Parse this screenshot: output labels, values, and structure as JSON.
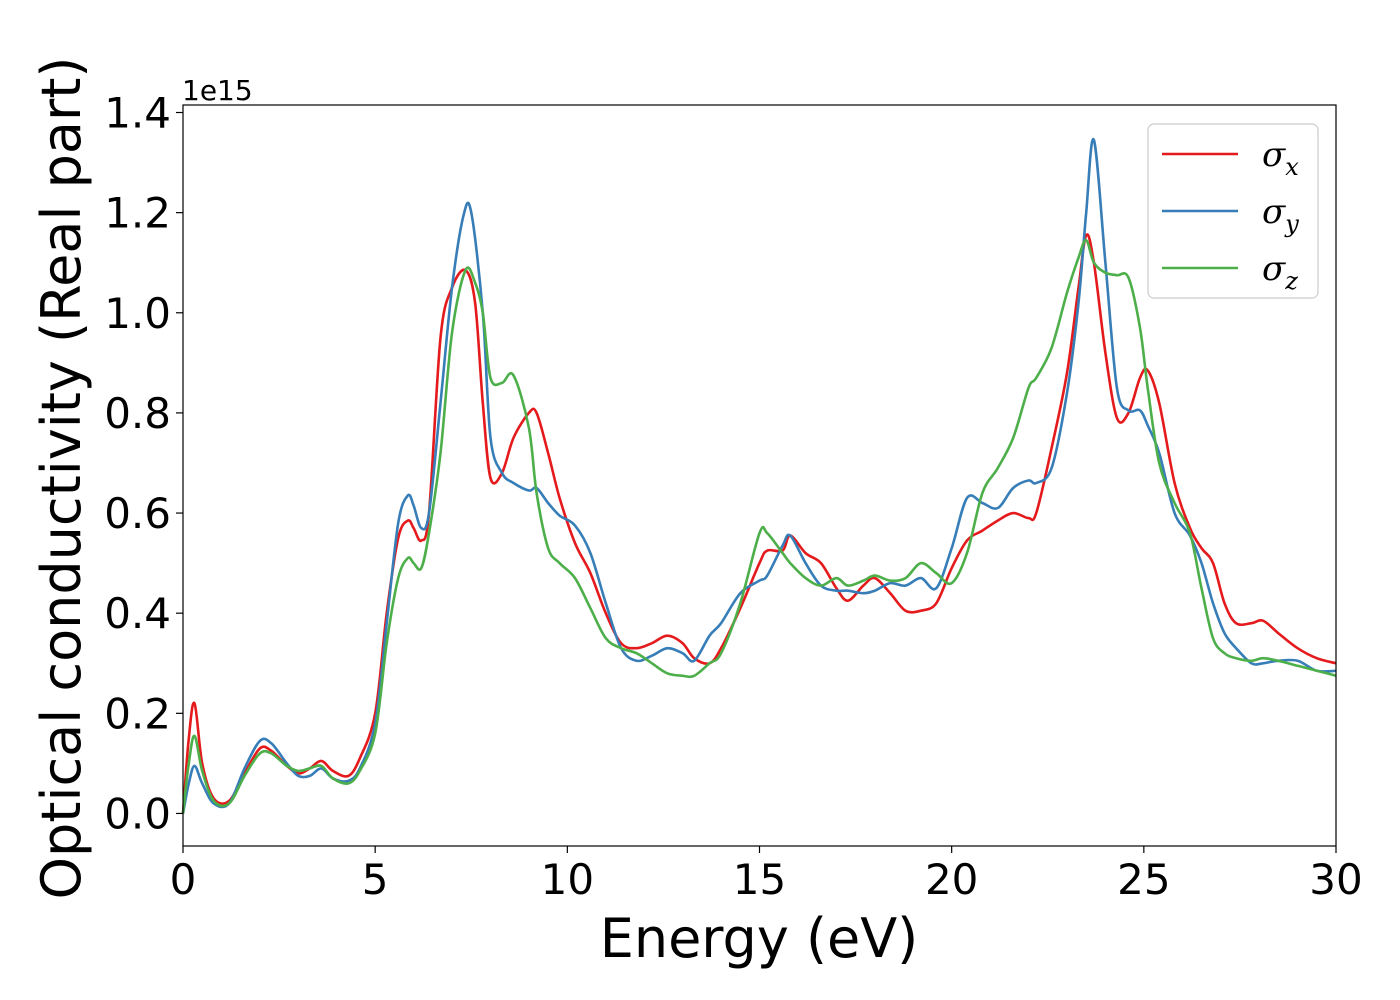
{
  "chart_data": {
    "type": "line",
    "title": "",
    "xlabel": "Energy (eV)",
    "ylabel": "Optical conductivity (Real part)",
    "y_offset_label": "1e15",
    "xlim": [
      0,
      30
    ],
    "ylim": [
      -0.065,
      1.415
    ],
    "x_ticks": [
      0,
      5,
      10,
      15,
      20,
      25,
      30
    ],
    "x_tick_labels": [
      "0",
      "5",
      "10",
      "15",
      "20",
      "25",
      "30"
    ],
    "y_ticks": [
      0.0,
      0.2,
      0.4,
      0.6,
      0.8,
      1.0,
      1.2,
      1.4
    ],
    "y_tick_labels": [
      "0.0",
      "0.2",
      "0.4",
      "0.6",
      "0.8",
      "1.0",
      "1.2",
      "1.4"
    ],
    "grid": false,
    "legend_position": "top-right",
    "series": [
      {
        "name": "σx",
        "legend_symbol": "σ",
        "legend_subscript": "x",
        "color": "#e41a1c",
        "points": [
          [
            0,
            0.0
          ],
          [
            0.15,
            0.15
          ],
          [
            0.3,
            0.22
          ],
          [
            0.5,
            0.1
          ],
          [
            0.8,
            0.03
          ],
          [
            1.2,
            0.025
          ],
          [
            1.6,
            0.08
          ],
          [
            2.0,
            0.13
          ],
          [
            2.3,
            0.125
          ],
          [
            2.7,
            0.095
          ],
          [
            3.0,
            0.08
          ],
          [
            3.3,
            0.09
          ],
          [
            3.6,
            0.105
          ],
          [
            3.9,
            0.085
          ],
          [
            4.3,
            0.075
          ],
          [
            4.6,
            0.11
          ],
          [
            5.0,
            0.2
          ],
          [
            5.3,
            0.4
          ],
          [
            5.6,
            0.55
          ],
          [
            5.85,
            0.585
          ],
          [
            6.0,
            0.57
          ],
          [
            6.2,
            0.545
          ],
          [
            6.4,
            0.6
          ],
          [
            6.7,
            0.95
          ],
          [
            7.0,
            1.05
          ],
          [
            7.35,
            1.085
          ],
          [
            7.6,
            1.02
          ],
          [
            7.8,
            0.82
          ],
          [
            8.0,
            0.67
          ],
          [
            8.3,
            0.68
          ],
          [
            8.6,
            0.75
          ],
          [
            9.0,
            0.8
          ],
          [
            9.2,
            0.8
          ],
          [
            9.5,
            0.72
          ],
          [
            9.8,
            0.63
          ],
          [
            10.2,
            0.54
          ],
          [
            10.6,
            0.48
          ],
          [
            11.0,
            0.4
          ],
          [
            11.4,
            0.34
          ],
          [
            11.8,
            0.33
          ],
          [
            12.2,
            0.34
          ],
          [
            12.6,
            0.355
          ],
          [
            13.0,
            0.34
          ],
          [
            13.3,
            0.31
          ],
          [
            13.7,
            0.3
          ],
          [
            14.0,
            0.33
          ],
          [
            14.5,
            0.41
          ],
          [
            15.0,
            0.5
          ],
          [
            15.2,
            0.525
          ],
          [
            15.6,
            0.525
          ],
          [
            15.8,
            0.555
          ],
          [
            16.2,
            0.52
          ],
          [
            16.6,
            0.5
          ],
          [
            17.0,
            0.45
          ],
          [
            17.3,
            0.425
          ],
          [
            17.7,
            0.455
          ],
          [
            18.0,
            0.47
          ],
          [
            18.4,
            0.44
          ],
          [
            18.8,
            0.405
          ],
          [
            19.2,
            0.405
          ],
          [
            19.6,
            0.42
          ],
          [
            20.0,
            0.49
          ],
          [
            20.4,
            0.545
          ],
          [
            20.8,
            0.565
          ],
          [
            21.2,
            0.585
          ],
          [
            21.6,
            0.6
          ],
          [
            22.0,
            0.59
          ],
          [
            22.2,
            0.6
          ],
          [
            22.6,
            0.73
          ],
          [
            23.0,
            0.88
          ],
          [
            23.3,
            1.05
          ],
          [
            23.5,
            1.155
          ],
          [
            23.7,
            1.1
          ],
          [
            24.0,
            0.92
          ],
          [
            24.3,
            0.79
          ],
          [
            24.6,
            0.8
          ],
          [
            24.9,
            0.87
          ],
          [
            25.1,
            0.885
          ],
          [
            25.4,
            0.82
          ],
          [
            25.8,
            0.66
          ],
          [
            26.2,
            0.57
          ],
          [
            26.5,
            0.53
          ],
          [
            26.8,
            0.5
          ],
          [
            27.1,
            0.42
          ],
          [
            27.4,
            0.38
          ],
          [
            27.8,
            0.38
          ],
          [
            28.1,
            0.385
          ],
          [
            28.5,
            0.36
          ],
          [
            29.0,
            0.33
          ],
          [
            29.5,
            0.31
          ],
          [
            30.0,
            0.3
          ]
        ]
      },
      {
        "name": "σy",
        "legend_symbol": "σ",
        "legend_subscript": "y",
        "color": "#377eb8",
        "points": [
          [
            0,
            0.0
          ],
          [
            0.15,
            0.06
          ],
          [
            0.3,
            0.095
          ],
          [
            0.5,
            0.06
          ],
          [
            0.8,
            0.02
          ],
          [
            1.2,
            0.02
          ],
          [
            1.6,
            0.09
          ],
          [
            2.0,
            0.145
          ],
          [
            2.3,
            0.14
          ],
          [
            2.7,
            0.1
          ],
          [
            3.0,
            0.075
          ],
          [
            3.3,
            0.075
          ],
          [
            3.6,
            0.09
          ],
          [
            3.9,
            0.07
          ],
          [
            4.3,
            0.065
          ],
          [
            4.6,
            0.09
          ],
          [
            5.0,
            0.18
          ],
          [
            5.3,
            0.38
          ],
          [
            5.6,
            0.58
          ],
          [
            5.85,
            0.635
          ],
          [
            6.0,
            0.615
          ],
          [
            6.2,
            0.57
          ],
          [
            6.4,
            0.6
          ],
          [
            6.7,
            0.82
          ],
          [
            7.0,
            1.05
          ],
          [
            7.3,
            1.195
          ],
          [
            7.5,
            1.2
          ],
          [
            7.8,
            1.0
          ],
          [
            8.0,
            0.75
          ],
          [
            8.3,
            0.68
          ],
          [
            8.6,
            0.66
          ],
          [
            9.0,
            0.645
          ],
          [
            9.2,
            0.65
          ],
          [
            9.5,
            0.62
          ],
          [
            9.8,
            0.595
          ],
          [
            10.2,
            0.575
          ],
          [
            10.6,
            0.52
          ],
          [
            11.0,
            0.42
          ],
          [
            11.4,
            0.33
          ],
          [
            11.8,
            0.305
          ],
          [
            12.2,
            0.315
          ],
          [
            12.6,
            0.33
          ],
          [
            13.0,
            0.32
          ],
          [
            13.3,
            0.305
          ],
          [
            13.7,
            0.355
          ],
          [
            14.0,
            0.38
          ],
          [
            14.5,
            0.44
          ],
          [
            15.0,
            0.465
          ],
          [
            15.2,
            0.475
          ],
          [
            15.6,
            0.535
          ],
          [
            15.8,
            0.555
          ],
          [
            16.2,
            0.5
          ],
          [
            16.6,
            0.455
          ],
          [
            17.0,
            0.445
          ],
          [
            17.3,
            0.445
          ],
          [
            17.7,
            0.44
          ],
          [
            18.0,
            0.445
          ],
          [
            18.4,
            0.46
          ],
          [
            18.8,
            0.455
          ],
          [
            19.2,
            0.47
          ],
          [
            19.6,
            0.45
          ],
          [
            20.0,
            0.53
          ],
          [
            20.4,
            0.63
          ],
          [
            20.8,
            0.62
          ],
          [
            21.2,
            0.61
          ],
          [
            21.6,
            0.65
          ],
          [
            22.0,
            0.665
          ],
          [
            22.2,
            0.66
          ],
          [
            22.6,
            0.69
          ],
          [
            23.0,
            0.84
          ],
          [
            23.3,
            1.02
          ],
          [
            23.5,
            1.2
          ],
          [
            23.7,
            1.345
          ],
          [
            24.0,
            1.1
          ],
          [
            24.3,
            0.85
          ],
          [
            24.6,
            0.805
          ],
          [
            24.9,
            0.805
          ],
          [
            25.1,
            0.775
          ],
          [
            25.4,
            0.72
          ],
          [
            25.8,
            0.6
          ],
          [
            26.2,
            0.555
          ],
          [
            26.5,
            0.5
          ],
          [
            26.8,
            0.42
          ],
          [
            27.1,
            0.36
          ],
          [
            27.4,
            0.33
          ],
          [
            27.8,
            0.3
          ],
          [
            28.1,
            0.3
          ],
          [
            28.5,
            0.305
          ],
          [
            29.0,
            0.305
          ],
          [
            29.5,
            0.285
          ],
          [
            30.0,
            0.285
          ]
        ]
      },
      {
        "name": "σz",
        "legend_symbol": "σ",
        "legend_subscript": "z",
        "color": "#4daf4a",
        "points": [
          [
            0,
            0.0
          ],
          [
            0.15,
            0.1
          ],
          [
            0.3,
            0.155
          ],
          [
            0.5,
            0.085
          ],
          [
            0.8,
            0.025
          ],
          [
            1.2,
            0.02
          ],
          [
            1.6,
            0.075
          ],
          [
            2.0,
            0.12
          ],
          [
            2.3,
            0.12
          ],
          [
            2.7,
            0.095
          ],
          [
            3.0,
            0.085
          ],
          [
            3.3,
            0.09
          ],
          [
            3.6,
            0.095
          ],
          [
            3.9,
            0.07
          ],
          [
            4.3,
            0.06
          ],
          [
            4.6,
            0.085
          ],
          [
            5.0,
            0.16
          ],
          [
            5.3,
            0.34
          ],
          [
            5.6,
            0.47
          ],
          [
            5.85,
            0.51
          ],
          [
            6.0,
            0.5
          ],
          [
            6.2,
            0.49
          ],
          [
            6.4,
            0.56
          ],
          [
            6.7,
            0.72
          ],
          [
            7.0,
            0.96
          ],
          [
            7.35,
            1.085
          ],
          [
            7.6,
            1.06
          ],
          [
            7.8,
            1.0
          ],
          [
            8.0,
            0.87
          ],
          [
            8.3,
            0.86
          ],
          [
            8.6,
            0.875
          ],
          [
            9.0,
            0.77
          ],
          [
            9.2,
            0.64
          ],
          [
            9.5,
            0.53
          ],
          [
            9.8,
            0.5
          ],
          [
            10.2,
            0.47
          ],
          [
            10.6,
            0.41
          ],
          [
            11.0,
            0.35
          ],
          [
            11.4,
            0.33
          ],
          [
            11.8,
            0.32
          ],
          [
            12.2,
            0.3
          ],
          [
            12.6,
            0.28
          ],
          [
            13.0,
            0.275
          ],
          [
            13.3,
            0.275
          ],
          [
            13.7,
            0.3
          ],
          [
            14.0,
            0.32
          ],
          [
            14.5,
            0.42
          ],
          [
            15.0,
            0.56
          ],
          [
            15.2,
            0.56
          ],
          [
            15.6,
            0.52
          ],
          [
            15.8,
            0.5
          ],
          [
            16.2,
            0.47
          ],
          [
            16.6,
            0.455
          ],
          [
            17.0,
            0.47
          ],
          [
            17.3,
            0.455
          ],
          [
            17.7,
            0.465
          ],
          [
            18.0,
            0.475
          ],
          [
            18.4,
            0.465
          ],
          [
            18.8,
            0.47
          ],
          [
            19.2,
            0.5
          ],
          [
            19.6,
            0.48
          ],
          [
            20.0,
            0.46
          ],
          [
            20.4,
            0.52
          ],
          [
            20.8,
            0.64
          ],
          [
            21.2,
            0.69
          ],
          [
            21.6,
            0.75
          ],
          [
            22.0,
            0.85
          ],
          [
            22.2,
            0.87
          ],
          [
            22.6,
            0.93
          ],
          [
            23.0,
            1.04
          ],
          [
            23.3,
            1.11
          ],
          [
            23.5,
            1.145
          ],
          [
            23.7,
            1.1
          ],
          [
            24.0,
            1.08
          ],
          [
            24.3,
            1.075
          ],
          [
            24.6,
            1.07
          ],
          [
            24.9,
            0.97
          ],
          [
            25.1,
            0.85
          ],
          [
            25.4,
            0.7
          ],
          [
            25.8,
            0.62
          ],
          [
            26.2,
            0.56
          ],
          [
            26.5,
            0.45
          ],
          [
            26.8,
            0.35
          ],
          [
            27.1,
            0.32
          ],
          [
            27.4,
            0.31
          ],
          [
            27.8,
            0.305
          ],
          [
            28.1,
            0.31
          ],
          [
            28.5,
            0.305
          ],
          [
            29.0,
            0.295
          ],
          [
            29.5,
            0.285
          ],
          [
            30.0,
            0.275
          ]
        ]
      }
    ]
  }
}
